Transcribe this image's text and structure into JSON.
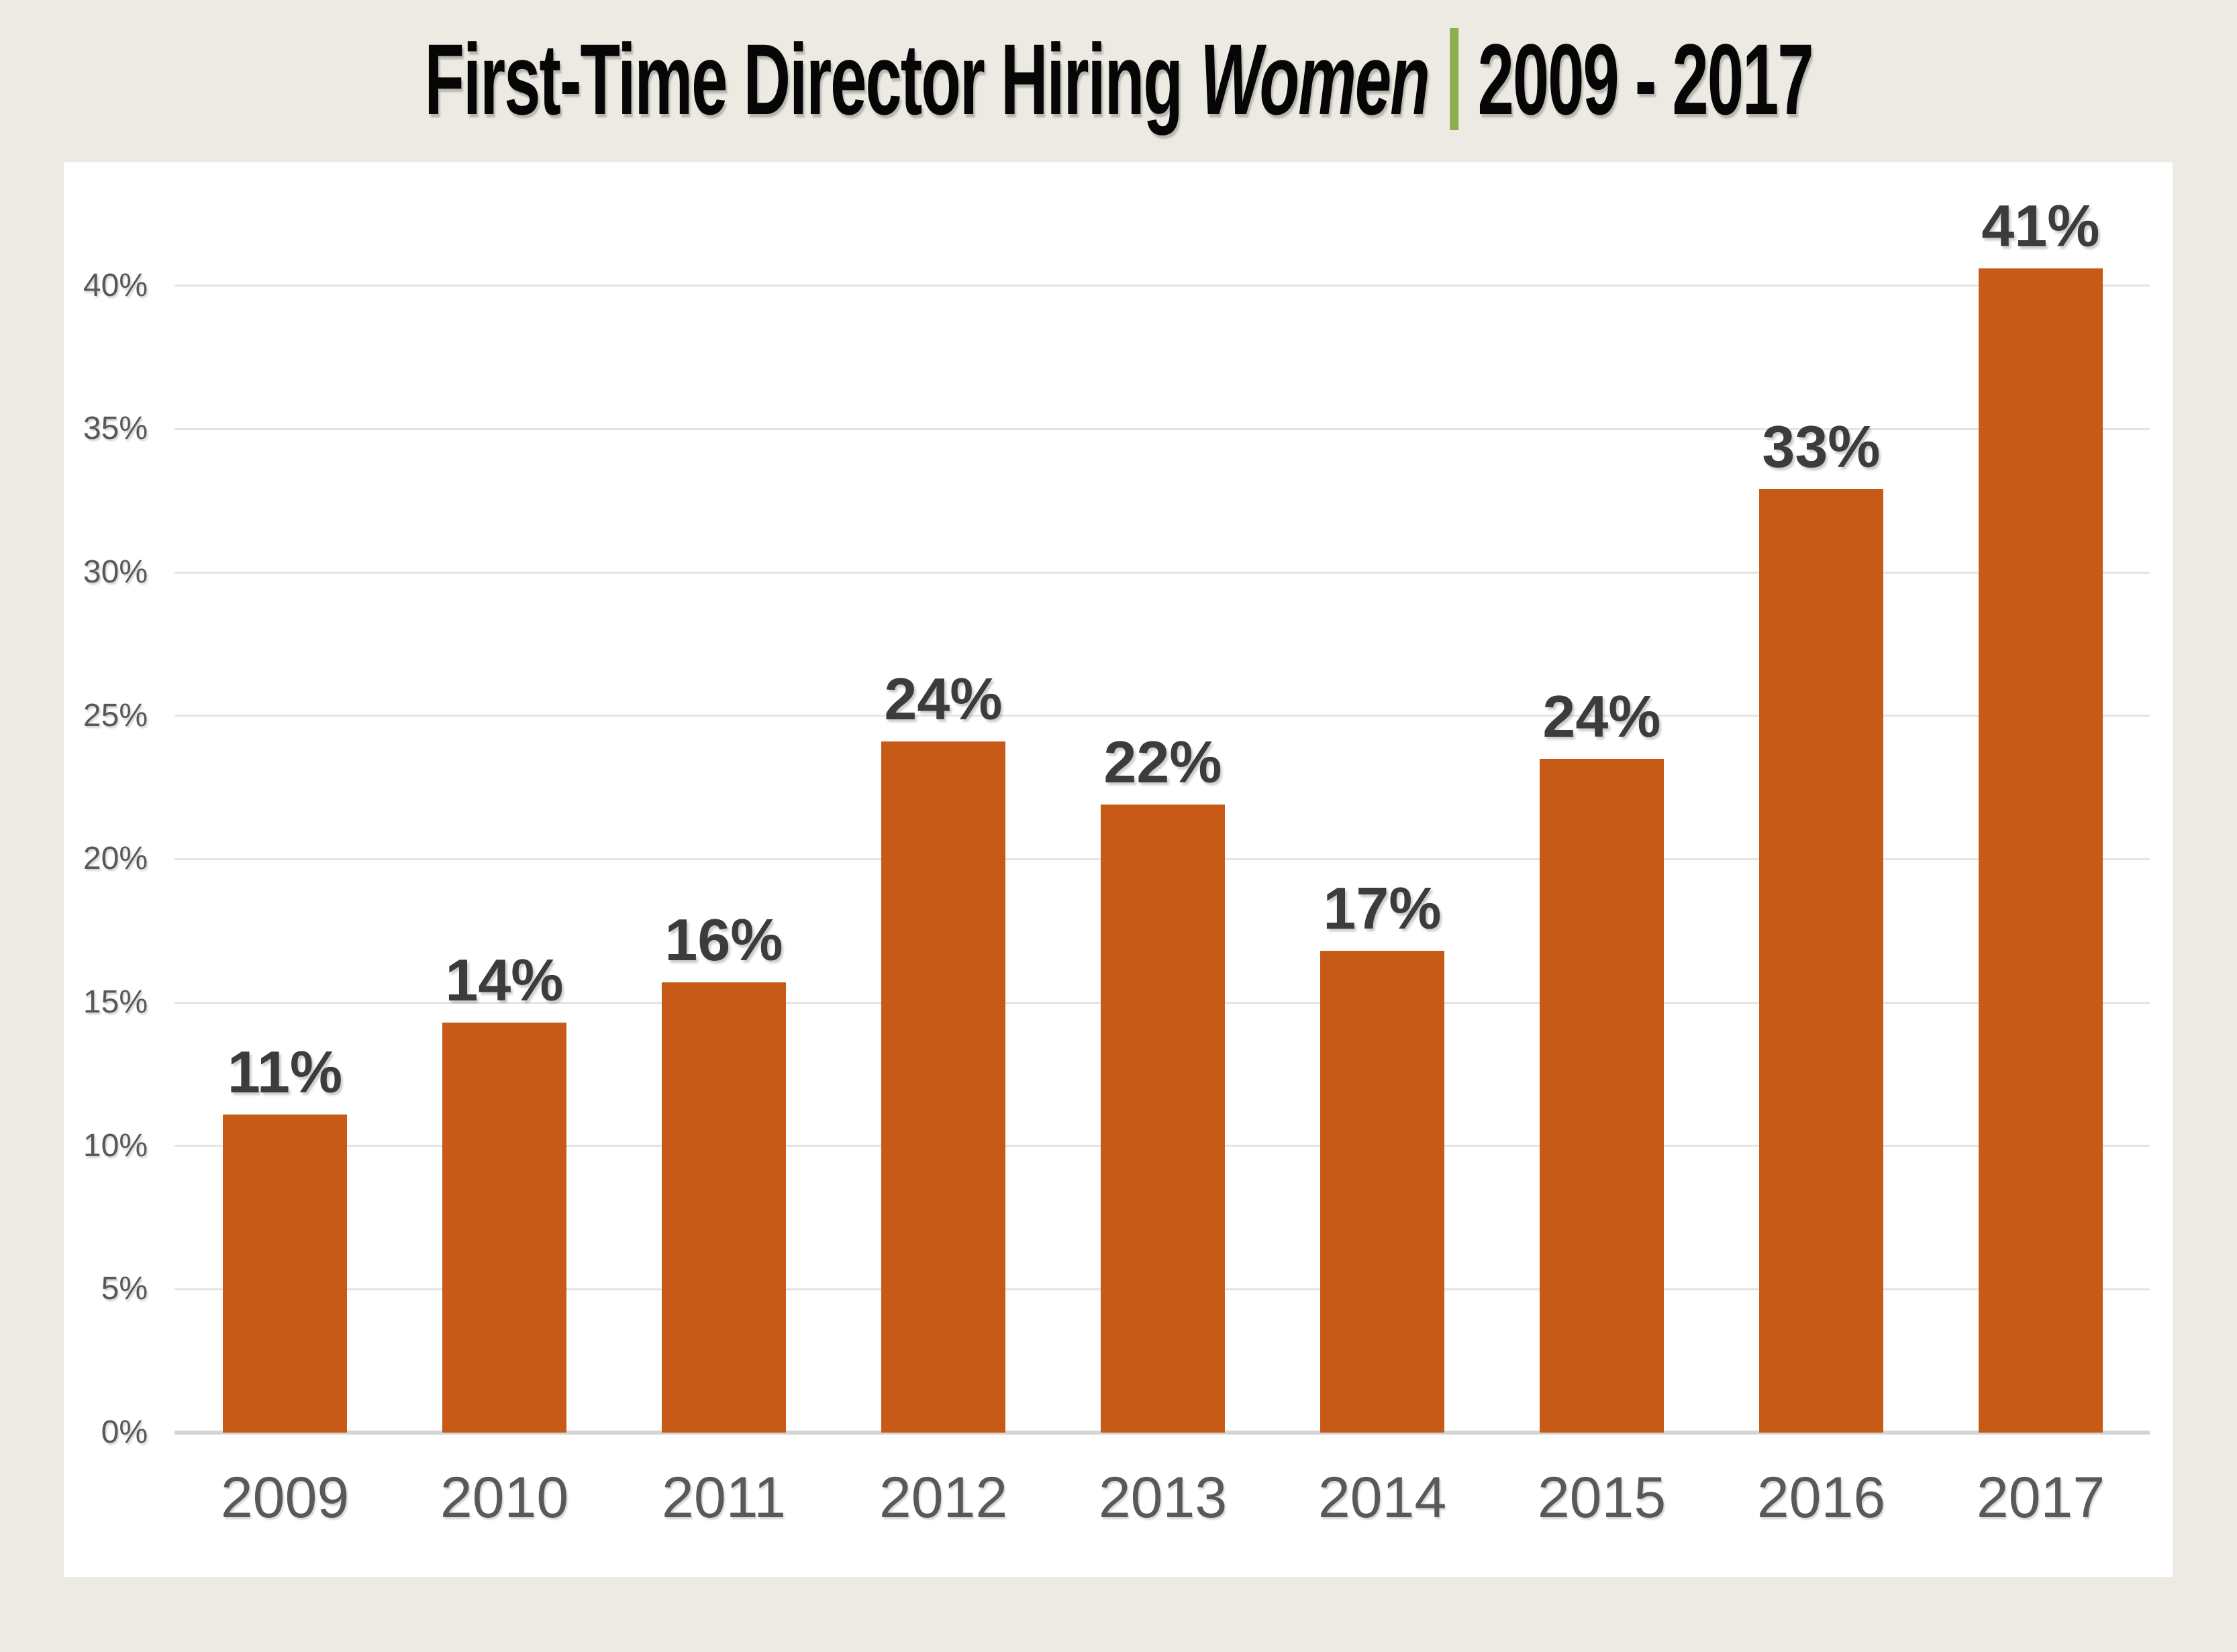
{
  "title": {
    "main": "First-Time Director Hiring",
    "emphasis": "Women",
    "range": "2009 - 2017"
  },
  "colors": {
    "background": "#EDEAE3",
    "panel": "#FFFFFF",
    "bar": "#C65A16",
    "title_separator": "#8CAE4C",
    "gridline": "#E4E4E4",
    "axis_line": "#D4D4D4",
    "axis_label": "#595959",
    "value_label": "#3C3C3C",
    "title_text": "#060606"
  },
  "chart_data": {
    "type": "bar",
    "title": "First-Time Director Hiring Women | 2009 - 2017",
    "categories": [
      "2009",
      "2010",
      "2011",
      "2012",
      "2013",
      "2014",
      "2015",
      "2016",
      "2017"
    ],
    "values": [
      11.1,
      14.3,
      15.7,
      24.1,
      21.9,
      16.8,
      23.5,
      32.9,
      40.6
    ],
    "bar_labels": [
      "11%",
      "14%",
      "16%",
      "24%",
      "22%",
      "17%",
      "24%",
      "33%",
      "41%"
    ],
    "y_ticks": [
      {
        "label": "0%",
        "value": 0
      },
      {
        "label": "5%",
        "value": 5
      },
      {
        "label": "10%",
        "value": 10
      },
      {
        "label": "15%",
        "value": 15
      },
      {
        "label": "20%",
        "value": 20
      },
      {
        "label": "25%",
        "value": 25
      },
      {
        "label": "30%",
        "value": 30
      },
      {
        "label": "35%",
        "value": 35
      },
      {
        "label": "40%",
        "value": 40
      }
    ],
    "xlabel": "",
    "ylabel": "",
    "ylim": [
      0,
      44.3
    ],
    "grid": true,
    "legend": false
  }
}
